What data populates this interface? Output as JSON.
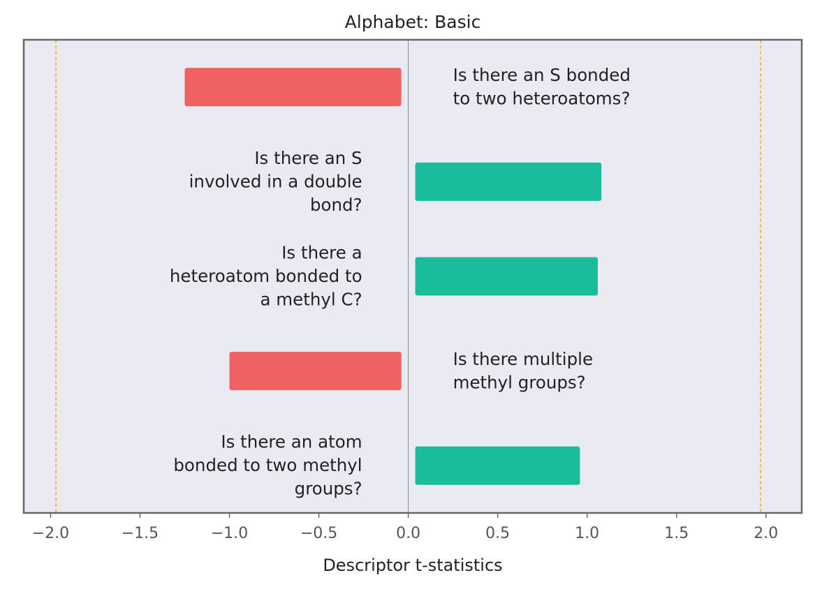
{
  "chart_data": {
    "type": "bar",
    "orientation": "horizontal",
    "title": "Alphabet: Basic",
    "xlabel": "Descriptor t-statistics",
    "ylabel": "",
    "xlim": [
      -2.15,
      2.2
    ],
    "xticks": [
      -2.0,
      -1.5,
      -1.0,
      -0.5,
      0.0,
      0.5,
      1.0,
      1.5,
      2.0
    ],
    "xtick_labels": [
      "−2.0",
      "−1.5",
      "−1.0",
      "−0.5",
      "0.0",
      "0.5",
      "1.0",
      "1.5",
      "2.0"
    ],
    "threshold_lines": [
      -1.97,
      1.97
    ],
    "grid": false,
    "legend": "none",
    "categories": [
      "Is there an S bonded to two heteroatoms?",
      "Is there an S involved in a double bond?",
      "Is there a heteroatom bonded to a methyl C?",
      "Is there multiple methyl groups?",
      "Is there an atom bonded to two methyl groups?"
    ],
    "label_lines": [
      [
        "Is there an S bonded",
        "to two heteroatoms?"
      ],
      [
        "Is there an S",
        "involved in a double",
        "bond?"
      ],
      [
        "Is there a",
        "heteroatom bonded to",
        "a methyl C?"
      ],
      [
        "Is there multiple",
        "methyl groups?"
      ],
      [
        "Is there an atom",
        "bonded to two methyl",
        "groups?"
      ]
    ],
    "values": [
      -1.25,
      1.08,
      1.06,
      -1.0,
      0.96
    ]
  },
  "colors": {
    "negative": "#f06262",
    "positive": "#1bbc9b",
    "plot_background": "#eaeaf2",
    "frame": "#666666",
    "threshold": "#f2a93b",
    "zero_line": "#888888"
  }
}
